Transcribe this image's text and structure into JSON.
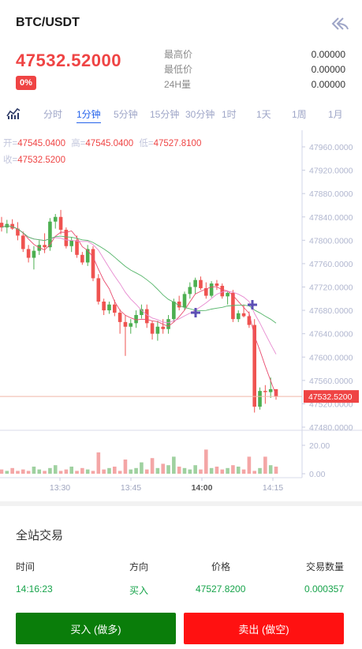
{
  "header": {
    "pair": "BTC/USDT"
  },
  "ticker": {
    "price": "47532.52000",
    "change": "0%",
    "stats": [
      {
        "label": "最高价",
        "value": "0.00000"
      },
      {
        "label": "最低价",
        "value": "0.00000"
      },
      {
        "label": "24H量",
        "value": "0.00000"
      }
    ]
  },
  "timeframes": [
    "分时",
    "1分钟",
    "5分钟",
    "15分钟",
    "30分钟",
    "1时",
    "1天",
    "1周",
    "1月"
  ],
  "timeframe_active": "1分钟",
  "ohlc": {
    "open_label": "开=",
    "open": "47545.0400",
    "high_label": "高=",
    "high": "47545.0400",
    "low_label": "低=",
    "low": "47527.8100",
    "close_label": "收=",
    "close": "47532.5200"
  },
  "chart_data": {
    "type": "candlestick",
    "y_axis_ticks": [
      "47960.0000",
      "47920.0000",
      "47880.0000",
      "47840.0000",
      "47800.0000",
      "47760.0000",
      "47720.0000",
      "47680.0000",
      "47640.0000",
      "47600.0000",
      "47560.0000",
      "47520.0000",
      "47480.0000"
    ],
    "current_price_label": "47532.5200",
    "volume_ticks": [
      "20.00",
      "0.00"
    ],
    "x_ticks": [
      "13:30",
      "13:45",
      "14:00",
      "14:15"
    ],
    "x_ticks_bold": "14:00",
    "candles": [
      {
        "o": 47830,
        "h": 47840,
        "l": 47815,
        "c": 47822
      },
      {
        "o": 47822,
        "h": 47835,
        "l": 47812,
        "c": 47828
      },
      {
        "o": 47828,
        "h": 47836,
        "l": 47818,
        "c": 47820
      },
      {
        "o": 47820,
        "h": 47831,
        "l": 47800,
        "c": 47808
      },
      {
        "o": 47808,
        "h": 47815,
        "l": 47780,
        "c": 47785
      },
      {
        "o": 47785,
        "h": 47792,
        "l": 47762,
        "c": 47770
      },
      {
        "o": 47770,
        "h": 47790,
        "l": 47750,
        "c": 47782
      },
      {
        "o": 47782,
        "h": 47800,
        "l": 47775,
        "c": 47792
      },
      {
        "o": 47792,
        "h": 47812,
        "l": 47778,
        "c": 47788
      },
      {
        "o": 47788,
        "h": 47838,
        "l": 47782,
        "c": 47832
      },
      {
        "o": 47832,
        "h": 47845,
        "l": 47820,
        "c": 47840
      },
      {
        "o": 47840,
        "h": 47852,
        "l": 47810,
        "c": 47818
      },
      {
        "o": 47818,
        "h": 47822,
        "l": 47786,
        "c": 47790
      },
      {
        "o": 47790,
        "h": 47805,
        "l": 47780,
        "c": 47800
      },
      {
        "o": 47800,
        "h": 47808,
        "l": 47770,
        "c": 47775
      },
      {
        "o": 47775,
        "h": 47780,
        "l": 47758,
        "c": 47762
      },
      {
        "o": 47762,
        "h": 47792,
        "l": 47756,
        "c": 47785
      },
      {
        "o": 47785,
        "h": 47790,
        "l": 47730,
        "c": 47735
      },
      {
        "o": 47735,
        "h": 47742,
        "l": 47690,
        "c": 47695
      },
      {
        "o": 47695,
        "h": 47700,
        "l": 47672,
        "c": 47680
      },
      {
        "o": 47680,
        "h": 47695,
        "l": 47674,
        "c": 47690
      },
      {
        "o": 47690,
        "h": 47698,
        "l": 47670,
        "c": 47676
      },
      {
        "o": 47676,
        "h": 47682,
        "l": 47640,
        "c": 47660
      },
      {
        "o": 47660,
        "h": 47672,
        "l": 47602,
        "c": 47652
      },
      {
        "o": 47652,
        "h": 47665,
        "l": 47640,
        "c": 47658
      },
      {
        "o": 47658,
        "h": 47680,
        "l": 47650,
        "c": 47672
      },
      {
        "o": 47672,
        "h": 47690,
        "l": 47666,
        "c": 47682
      },
      {
        "o": 47682,
        "h": 47690,
        "l": 47650,
        "c": 47658
      },
      {
        "o": 47658,
        "h": 47662,
        "l": 47630,
        "c": 47640
      },
      {
        "o": 47640,
        "h": 47662,
        "l": 47628,
        "c": 47652
      },
      {
        "o": 47652,
        "h": 47665,
        "l": 47640,
        "c": 47648
      },
      {
        "o": 47648,
        "h": 47672,
        "l": 47640,
        "c": 47665
      },
      {
        "o": 47665,
        "h": 47700,
        "l": 47660,
        "c": 47695
      },
      {
        "o": 47695,
        "h": 47705,
        "l": 47680,
        "c": 47685
      },
      {
        "o": 47685,
        "h": 47712,
        "l": 47680,
        "c": 47708
      },
      {
        "o": 47708,
        "h": 47728,
        "l": 47700,
        "c": 47720
      },
      {
        "o": 47720,
        "h": 47736,
        "l": 47708,
        "c": 47732
      },
      {
        "o": 47732,
        "h": 47738,
        "l": 47715,
        "c": 47718
      },
      {
        "o": 47718,
        "h": 47728,
        "l": 47700,
        "c": 47705
      },
      {
        "o": 47705,
        "h": 47730,
        "l": 47702,
        "c": 47726
      },
      {
        "o": 47726,
        "h": 47732,
        "l": 47715,
        "c": 47722
      },
      {
        "o": 47722,
        "h": 47726,
        "l": 47700,
        "c": 47704
      },
      {
        "o": 47704,
        "h": 47712,
        "l": 47690,
        "c": 47710
      },
      {
        "o": 47710,
        "h": 47715,
        "l": 47660,
        "c": 47665
      },
      {
        "o": 47665,
        "h": 47680,
        "l": 47660,
        "c": 47675
      },
      {
        "o": 47675,
        "h": 47690,
        "l": 47668,
        "c": 47670
      },
      {
        "o": 47670,
        "h": 47678,
        "l": 47650,
        "c": 47655
      },
      {
        "o": 47655,
        "h": 47665,
        "l": 47505,
        "c": 47515
      },
      {
        "o": 47515,
        "h": 47548,
        "l": 47510,
        "c": 47542
      },
      {
        "o": 47542,
        "h": 47552,
        "l": 47520,
        "c": 47540
      },
      {
        "o": 47540,
        "h": 47565,
        "l": 47530,
        "c": 47545
      },
      {
        "o": 47545,
        "h": 47545,
        "l": 47527,
        "c": 47532
      }
    ],
    "volumes": [
      3,
      2,
      4,
      2,
      3,
      2,
      5,
      3,
      2,
      4,
      6,
      2,
      3,
      5,
      2,
      4,
      3,
      2,
      15,
      3,
      4,
      5,
      2,
      10,
      3,
      4,
      8,
      3,
      11,
      4,
      7,
      6,
      12,
      5,
      4,
      3,
      6,
      3,
      17,
      4,
      5,
      3,
      4,
      6,
      5,
      3,
      12,
      2,
      4,
      12,
      6,
      5
    ]
  },
  "trades": {
    "title": "全站交易",
    "headers": {
      "time": "时间",
      "side": "方向",
      "price": "价格",
      "qty": "交易数量"
    },
    "rows": [
      {
        "time": "14:16:23",
        "side": "买入",
        "price": "47527.8200",
        "qty": "0.000357"
      }
    ]
  },
  "actions": {
    "buy": "买入 (做多)",
    "sell": "卖出 (做空)"
  },
  "colors": {
    "up": "#ef5350",
    "down": "#4caf50",
    "accent": "#2563eb",
    "buy_btn": "#0a7d0a",
    "sell_btn": "#ff1111"
  }
}
